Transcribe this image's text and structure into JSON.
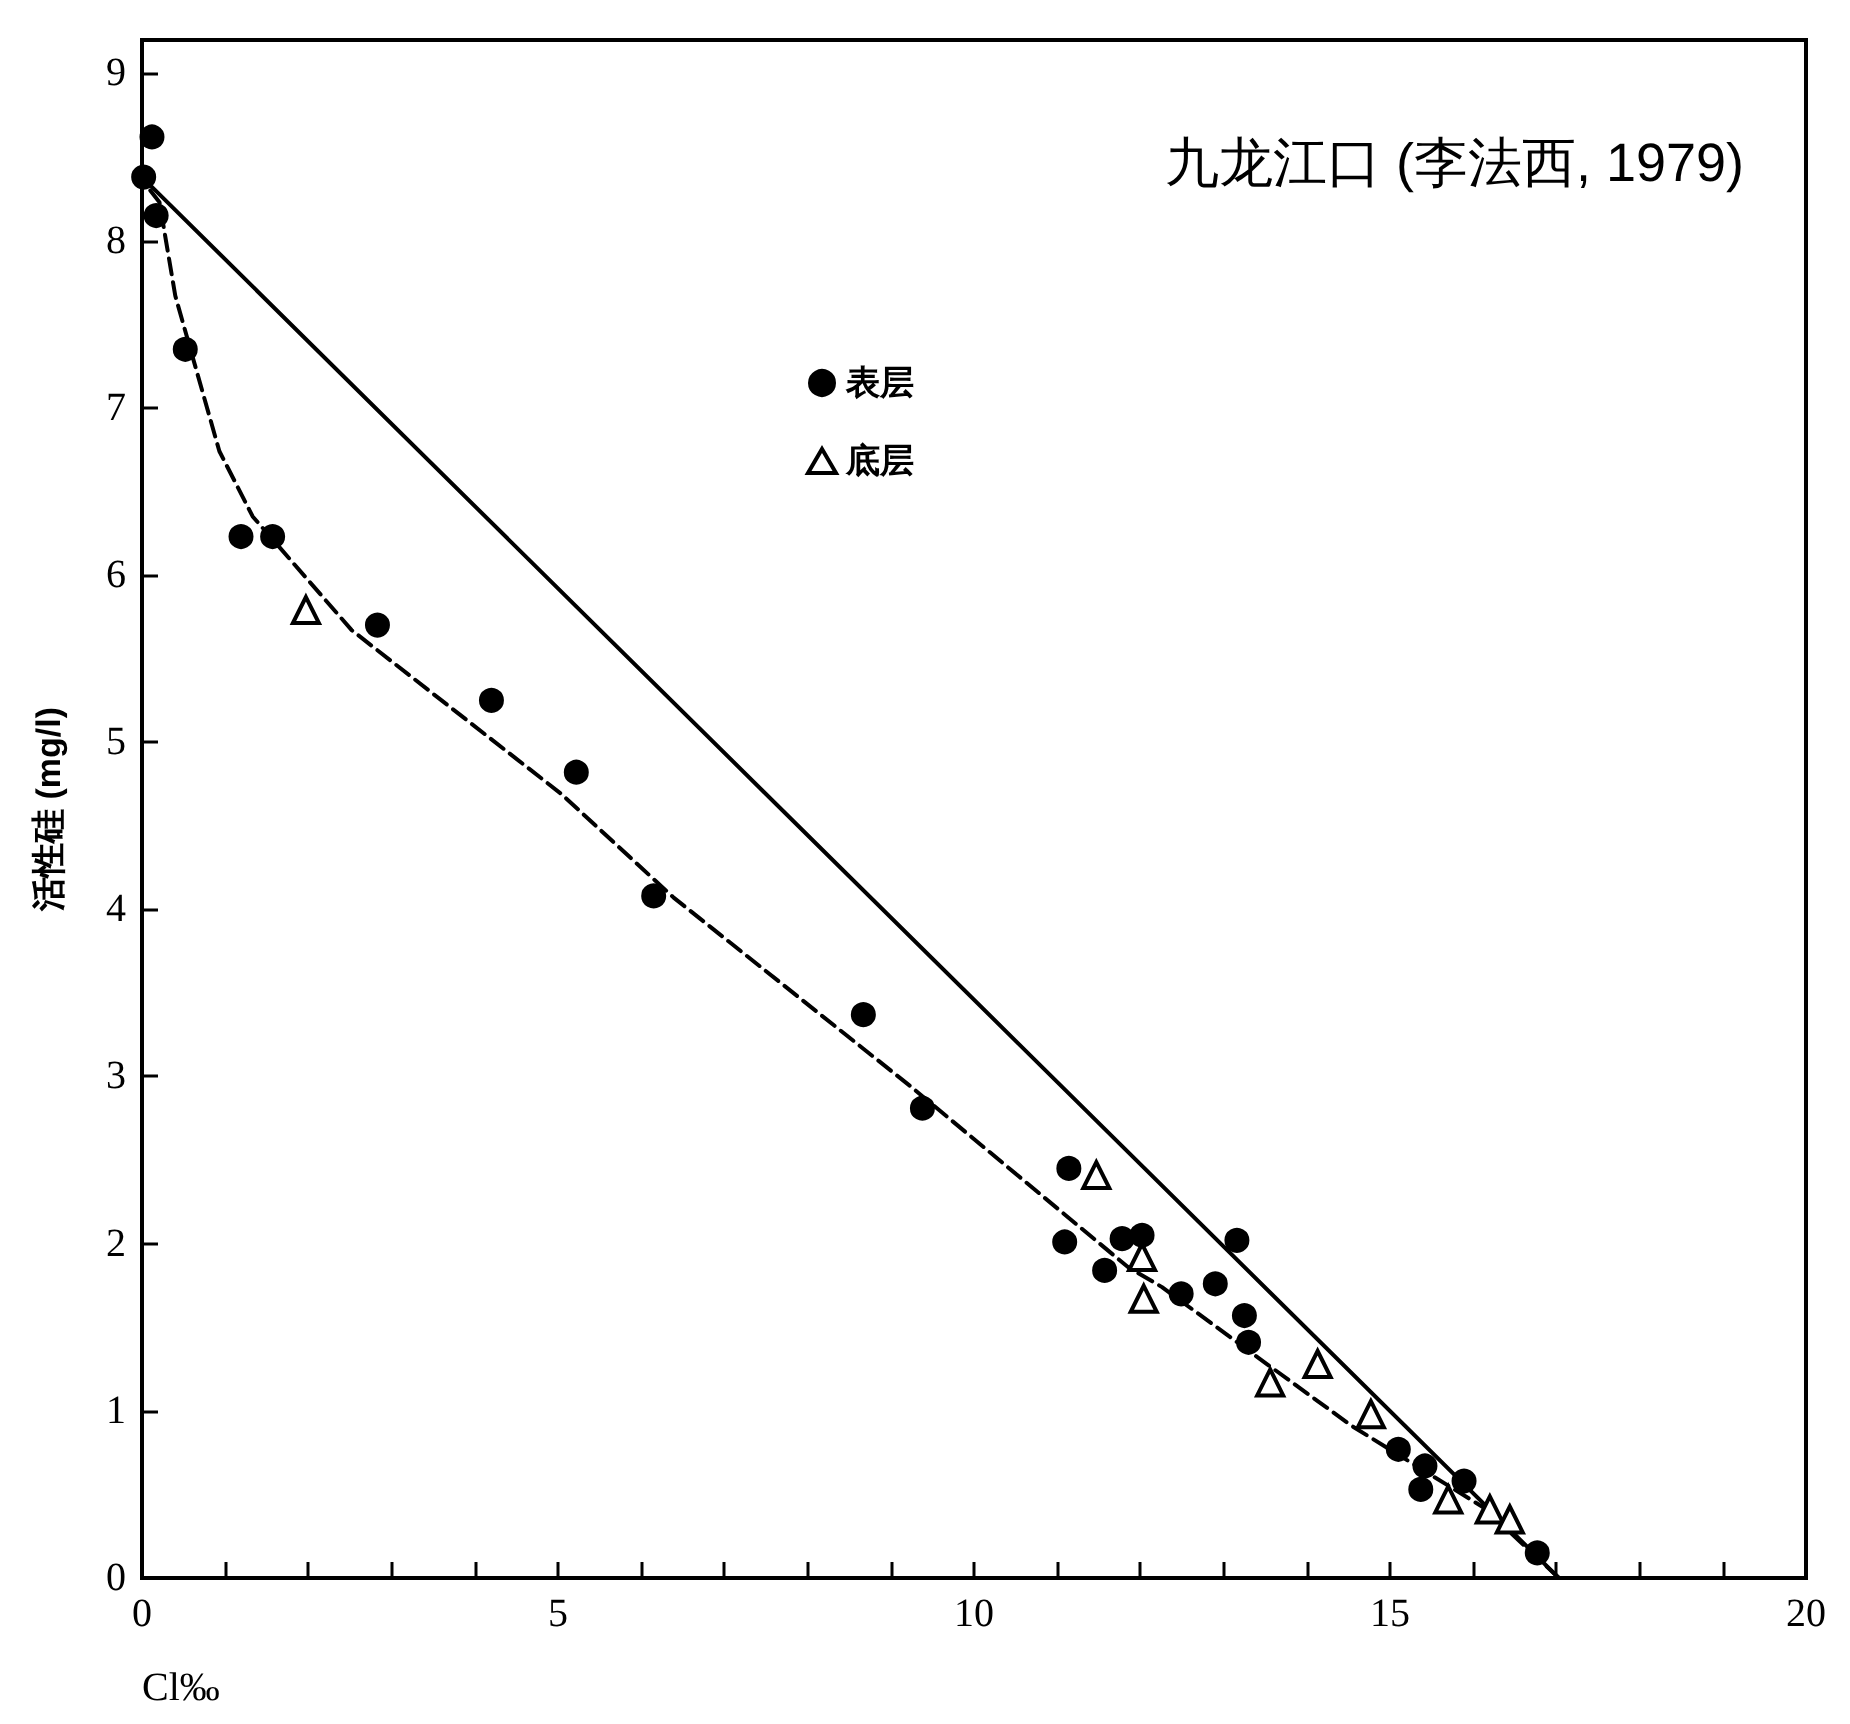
{
  "chart_data": {
    "type": "scatter",
    "title": "九龙江口 (李法西, 1979)",
    "xlabel": "Cl‰",
    "ylabel": "活性硅 (mg/l)",
    "xlim": [
      0,
      20
    ],
    "ylim": [
      0,
      9.2
    ],
    "xticks": [
      0,
      {
        "value": 1,
        "label": null
      },
      {
        "value": 2,
        "label": null
      },
      {
        "value": 3,
        "label": null
      },
      {
        "value": 4,
        "label": null
      },
      5,
      {
        "value": 6,
        "label": null
      },
      {
        "value": 7,
        "label": null
      },
      {
        "value": 8,
        "label": null
      },
      {
        "value": 9,
        "label": null
      },
      10,
      {
        "value": 11,
        "label": null
      },
      {
        "value": 12,
        "label": null
      },
      {
        "value": 13,
        "label": null
      },
      {
        "value": 14,
        "label": null
      },
      15,
      {
        "value": 16,
        "label": null
      },
      {
        "value": 17,
        "label": null
      },
      {
        "value": 18,
        "label": null
      },
      {
        "value": 19,
        "label": null
      },
      20
    ],
    "yticks": [
      0,
      1,
      2,
      3,
      4,
      5,
      6,
      7,
      8,
      9
    ],
    "grid": false,
    "legend": "top center",
    "series": [
      {
        "name": "表层",
        "marker": "circle",
        "color": "#000000",
        "x": [
          0.12,
          0.02,
          0.17,
          0.52,
          1.19,
          1.57,
          2.83,
          4.2,
          5.22,
          6.15,
          8.67,
          9.38,
          11.14,
          11.09,
          11.78,
          12.02,
          11.57,
          12.49,
          12.9,
          13.16,
          13.25,
          13.3,
          15.1,
          15.42,
          15.37,
          15.89,
          16.77
        ],
        "values": [
          8.62,
          8.38,
          8.15,
          7.35,
          6.23,
          6.23,
          5.7,
          5.25,
          4.82,
          4.08,
          3.37,
          2.81,
          2.45,
          2.01,
          2.03,
          2.05,
          1.84,
          1.7,
          1.76,
          2.02,
          1.57,
          1.41,
          0.77,
          0.67,
          0.53,
          0.58,
          0.15
        ]
      },
      {
        "name": "底层",
        "marker": "triangle",
        "color": "#000000",
        "x": [
          1.97,
          11.47,
          12.02,
          12.04,
          13.56,
          14.13,
          14.77,
          15.7,
          16.2,
          16.44
        ],
        "values": [
          5.79,
          2.41,
          1.92,
          1.67,
          1.17,
          1.28,
          0.98,
          0.47,
          0.41,
          0.35
        ]
      },
      {
        "type": "line",
        "marker": "none",
        "line_style": "solid",
        "color": "#000000",
        "x": [
          0,
          17.03
        ],
        "values": [
          8.38,
          0
        ]
      },
      {
        "type": "line",
        "marker": "none",
        "line_style": "dashed",
        "color": "#000000",
        "x": [
          0.1,
          0.21,
          0.4,
          0.93,
          1.33,
          2.52,
          5.04,
          6.39,
          9.24,
          11.85,
          12.26,
          13.52,
          14.54,
          16.13,
          17.03
        ],
        "values": [
          8.3,
          8.23,
          7.67,
          6.74,
          6.35,
          5.67,
          4.69,
          4.07,
          2.94,
          1.86,
          1.74,
          1.28,
          0.91,
          0.42,
          0
        ]
      }
    ]
  }
}
